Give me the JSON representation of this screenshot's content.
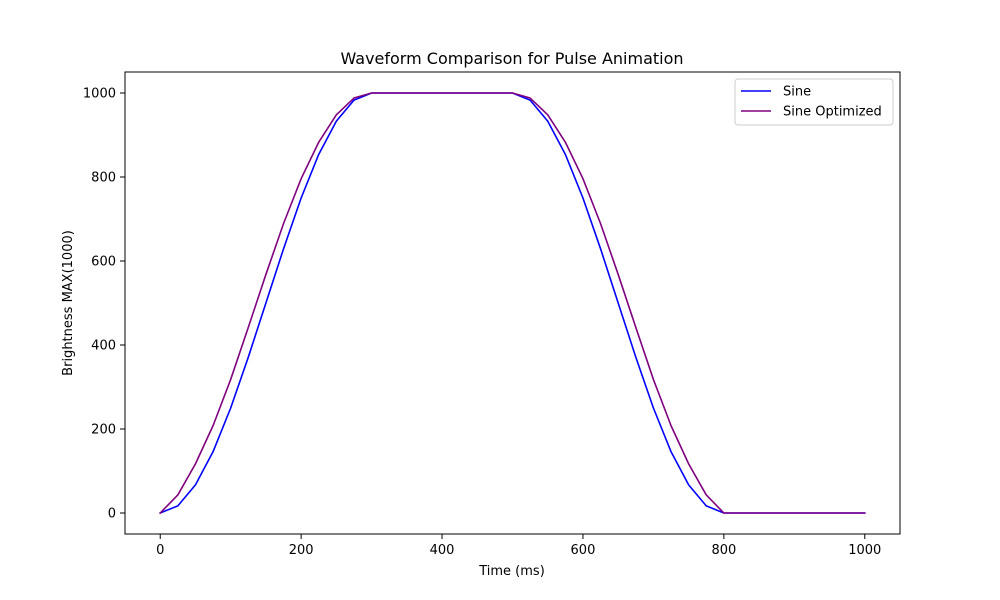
{
  "chart_data": {
    "type": "line",
    "title": "Waveform Comparison for Pulse Animation",
    "xlabel": "Time (ms)",
    "ylabel": "Brightness MAX(1000)",
    "xlim": [
      -50,
      1050
    ],
    "ylim": [
      -50,
      1050
    ],
    "xticks": [
      0,
      200,
      400,
      600,
      800,
      1000
    ],
    "yticks": [
      0,
      200,
      400,
      600,
      800,
      1000
    ],
    "grid": false,
    "legend_position": "top-right",
    "x": [
      0,
      25,
      50,
      75,
      100,
      125,
      150,
      175,
      200,
      225,
      250,
      275,
      300,
      325,
      350,
      375,
      400,
      425,
      450,
      475,
      500,
      525,
      550,
      575,
      600,
      625,
      650,
      675,
      700,
      725,
      750,
      775,
      800,
      825,
      850,
      875,
      900,
      925,
      950,
      975,
      1000
    ],
    "series": [
      {
        "name": "Sine",
        "color": "#0000ff",
        "values": [
          0,
          17,
          67,
          146,
          250,
          371,
          500,
          629,
          750,
          854,
          933,
          983,
          1000,
          1000,
          1000,
          1000,
          1000,
          1000,
          1000,
          1000,
          1000,
          983,
          933,
          854,
          750,
          629,
          500,
          371,
          250,
          146,
          67,
          17,
          0,
          0,
          0,
          0,
          0,
          0,
          0,
          0,
          0
        ]
      },
      {
        "name": "Sine Optimized",
        "color": "#800080",
        "values": [
          0,
          43,
          117,
          208,
          318,
          442,
          568,
          689,
          796,
          883,
          948,
          988,
          1000,
          1000,
          1000,
          1000,
          1000,
          1000,
          1000,
          1000,
          1000,
          988,
          948,
          883,
          796,
          689,
          568,
          442,
          318,
          208,
          117,
          43,
          0,
          0,
          0,
          0,
          0,
          0,
          0,
          0,
          0
        ]
      }
    ]
  }
}
